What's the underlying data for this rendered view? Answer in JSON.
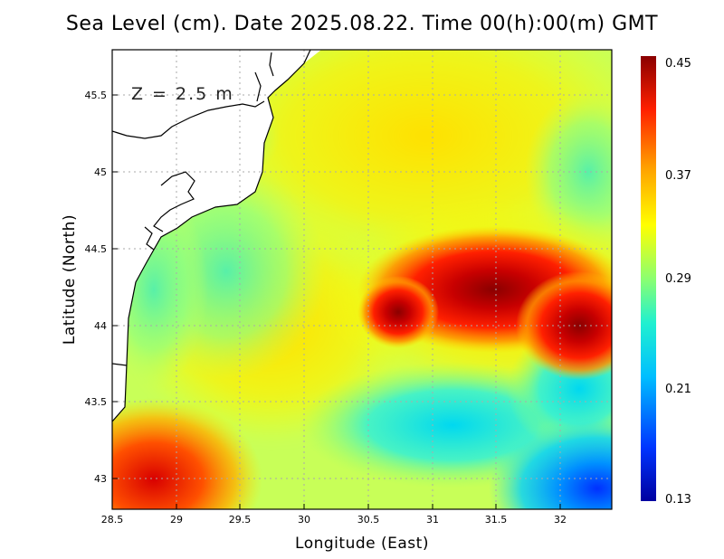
{
  "title": "Sea Level (cm). Date 2025.08.22. Time 00(h):00(m) GMT",
  "depth_label": "Z = 2.5 m",
  "x_axis": {
    "label": "Longitude (East)",
    "range": [
      28.5,
      32.4
    ],
    "ticks": [
      "28.5",
      "29",
      "29.5",
      "30",
      "30.5",
      "31",
      "31.5",
      "32"
    ]
  },
  "y_axis": {
    "label": "Latitude (North)",
    "range": [
      42.8,
      45.8
    ],
    "ticks": [
      "43",
      "43.5",
      "44",
      "44.5",
      "45",
      "45.5"
    ]
  },
  "colorbar": {
    "range": [
      0.13,
      0.45
    ],
    "labels": [
      "0.45",
      "0.37",
      "0.29",
      "0.21",
      "0.13"
    ]
  },
  "chart_data": {
    "type": "heatmap",
    "title": "Sea Level (cm). Date 2025.08.22. Time 00(h):00(m) GMT",
    "xlabel": "Longitude (East)",
    "ylabel": "Latitude (North)",
    "xlim": [
      28.5,
      32.4
    ],
    "ylim": [
      42.8,
      45.8
    ],
    "value_range": [
      0.13,
      0.45
    ],
    "features": [
      {
        "name": "high-sea-level-core",
        "lon": 31.5,
        "lat": 44.25,
        "value": 0.45
      },
      {
        "name": "high-sea-level-southwest",
        "lon": 29.0,
        "lat": 42.85,
        "value": 0.42
      },
      {
        "name": "low-sea-level-southeast",
        "lon": 32.3,
        "lat": 42.9,
        "value": 0.17
      },
      {
        "name": "low-sea-level-south-central",
        "lon": 31.3,
        "lat": 43.25,
        "value": 0.25
      }
    ]
  }
}
